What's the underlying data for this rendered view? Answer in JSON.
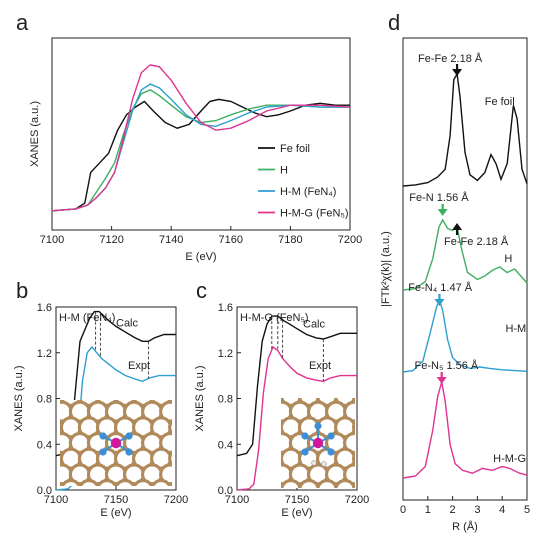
{
  "colors": {
    "fe_foil": "#111111",
    "h": "#3fae63",
    "h_m": "#2c9fd0",
    "h_m_g": "#e0338f",
    "arrow_black": "#111111",
    "atom_fe": "#d4189b",
    "atom_n": "#3a8fd6",
    "atom_c": "#b08a5a",
    "atom_h": "#ffffff"
  },
  "chart_data": [
    {
      "panel": "a",
      "type": "line",
      "xlabel": "E (eV)",
      "ylabel": "XANES (a.u.)",
      "xlim": [
        7100,
        7200
      ],
      "xticks": [
        "7100",
        "7120",
        "7140",
        "7160",
        "7180",
        "7200"
      ],
      "legend_position": "right",
      "series": [
        {
          "name": "Fe foil",
          "color": "#111111",
          "points": [
            [
              7100,
              0.1
            ],
            [
              7108,
              0.11
            ],
            [
              7111,
              0.14
            ],
            [
              7113,
              0.3
            ],
            [
              7116,
              0.35
            ],
            [
              7119,
              0.4
            ],
            [
              7122,
              0.52
            ],
            [
              7125,
              0.6
            ],
            [
              7128,
              0.64
            ],
            [
              7131,
              0.67
            ],
            [
              7134,
              0.62
            ],
            [
              7138,
              0.56
            ],
            [
              7142,
              0.53
            ],
            [
              7146,
              0.55
            ],
            [
              7150,
              0.62
            ],
            [
              7153,
              0.67
            ],
            [
              7156,
              0.68
            ],
            [
              7160,
              0.67
            ],
            [
              7164,
              0.64
            ],
            [
              7168,
              0.61
            ],
            [
              7172,
              0.59
            ],
            [
              7176,
              0.6
            ],
            [
              7180,
              0.62
            ],
            [
              7185,
              0.65
            ],
            [
              7190,
              0.66
            ],
            [
              7195,
              0.65
            ],
            [
              7200,
              0.65
            ]
          ]
        },
        {
          "name": "H",
          "color": "#3fae63",
          "points": [
            [
              7100,
              0.1
            ],
            [
              7108,
              0.11
            ],
            [
              7112,
              0.13
            ],
            [
              7115,
              0.2
            ],
            [
              7118,
              0.27
            ],
            [
              7121,
              0.35
            ],
            [
              7124,
              0.5
            ],
            [
              7127,
              0.63
            ],
            [
              7130,
              0.71
            ],
            [
              7133,
              0.73
            ],
            [
              7136,
              0.7
            ],
            [
              7140,
              0.65
            ],
            [
              7145,
              0.59
            ],
            [
              7150,
              0.56
            ],
            [
              7155,
              0.57
            ],
            [
              7160,
              0.6
            ],
            [
              7166,
              0.63
            ],
            [
              7172,
              0.65
            ],
            [
              7180,
              0.65
            ],
            [
              7190,
              0.64
            ],
            [
              7200,
              0.64
            ]
          ]
        },
        {
          "name": "H-M (FeN₄)",
          "color": "#2c9fd0",
          "points": [
            [
              7100,
              0.1
            ],
            [
              7108,
              0.11
            ],
            [
              7112,
              0.13
            ],
            [
              7115,
              0.17
            ],
            [
              7118,
              0.22
            ],
            [
              7121,
              0.3
            ],
            [
              7124,
              0.46
            ],
            [
              7127,
              0.62
            ],
            [
              7130,
              0.73
            ],
            [
              7133,
              0.76
            ],
            [
              7136,
              0.74
            ],
            [
              7140,
              0.68
            ],
            [
              7145,
              0.6
            ],
            [
              7150,
              0.55
            ],
            [
              7155,
              0.54
            ],
            [
              7160,
              0.57
            ],
            [
              7166,
              0.61
            ],
            [
              7172,
              0.64
            ],
            [
              7180,
              0.65
            ],
            [
              7190,
              0.64
            ],
            [
              7200,
              0.64
            ]
          ]
        },
        {
          "name": "H-M-G (FeN₅)",
          "color": "#e0338f",
          "points": [
            [
              7100,
              0.1
            ],
            [
              7108,
              0.11
            ],
            [
              7112,
              0.13
            ],
            [
              7115,
              0.17
            ],
            [
              7118,
              0.22
            ],
            [
              7121,
              0.3
            ],
            [
              7124,
              0.48
            ],
            [
              7127,
              0.68
            ],
            [
              7130,
              0.82
            ],
            [
              7133,
              0.86
            ],
            [
              7136,
              0.85
            ],
            [
              7140,
              0.78
            ],
            [
              7145,
              0.66
            ],
            [
              7150,
              0.56
            ],
            [
              7155,
              0.52
            ],
            [
              7160,
              0.53
            ],
            [
              7166,
              0.57
            ],
            [
              7172,
              0.62
            ],
            [
              7180,
              0.65
            ],
            [
              7190,
              0.65
            ],
            [
              7200,
              0.64
            ]
          ]
        }
      ]
    },
    {
      "panel": "b",
      "type": "line",
      "title": "H-M (FeN₄)",
      "xlabel": "E (eV)",
      "ylabel": "XANES (a.u.)",
      "xlim": [
        7100,
        7200
      ],
      "ylim": [
        0.0,
        1.6
      ],
      "xticks": [
        "7100",
        "7150",
        "7200"
      ],
      "yticks": [
        "0.0",
        "0.4",
        "0.8",
        "1.2",
        "1.6"
      ],
      "annotations": [
        "Calc",
        "Expt"
      ],
      "series": [
        {
          "name": "Calc",
          "color": "#111111",
          "points": [
            [
              7100,
              0.3
            ],
            [
              7108,
              0.32
            ],
            [
              7112,
              0.4
            ],
            [
              7116,
              0.85
            ],
            [
              7120,
              1.3
            ],
            [
              7124,
              1.4
            ],
            [
              7128,
              1.5
            ],
            [
              7132,
              1.56
            ],
            [
              7136,
              1.56
            ],
            [
              7140,
              1.52
            ],
            [
              7144,
              1.48
            ],
            [
              7150,
              1.43
            ],
            [
              7158,
              1.38
            ],
            [
              7166,
              1.33
            ],
            [
              7172,
              1.3
            ],
            [
              7177,
              1.3
            ],
            [
              7182,
              1.33
            ],
            [
              7190,
              1.36
            ],
            [
              7200,
              1.36
            ]
          ]
        },
        {
          "name": "Expt",
          "color": "#2c9fd0",
          "points": [
            [
              7100,
              0.0
            ],
            [
              7110,
              0.01
            ],
            [
              7114,
              0.05
            ],
            [
              7118,
              0.4
            ],
            [
              7122,
              0.95
            ],
            [
              7126,
              1.2
            ],
            [
              7130,
              1.25
            ],
            [
              7134,
              1.2
            ],
            [
              7138,
              1.15
            ],
            [
              7144,
              1.1
            ],
            [
              7150,
              1.05
            ],
            [
              7158,
              1.0
            ],
            [
              7166,
              0.97
            ],
            [
              7172,
              0.95
            ],
            [
              7178,
              0.98
            ],
            [
              7186,
              1.0
            ],
            [
              7200,
              1.0
            ]
          ]
        }
      ]
    },
    {
      "panel": "c",
      "type": "line",
      "title": "H-M-G (FeN₅)",
      "xlabel": "E (eV)",
      "ylabel": "XANES (a.u.)",
      "xlim": [
        7100,
        7200
      ],
      "ylim": [
        0.0,
        1.6
      ],
      "xticks": [
        "7100",
        "7150",
        "7200"
      ],
      "yticks": [
        "0.0",
        "0.4",
        "0.8",
        "1.2",
        "1.6"
      ],
      "annotations": [
        "Calc",
        "Expt"
      ],
      "series": [
        {
          "name": "Calc",
          "color": "#111111",
          "points": [
            [
              7100,
              0.3
            ],
            [
              7108,
              0.32
            ],
            [
              7113,
              0.4
            ],
            [
              7117,
              0.9
            ],
            [
              7121,
              1.3
            ],
            [
              7125,
              1.45
            ],
            [
              7129,
              1.52
            ],
            [
              7134,
              1.52
            ],
            [
              7139,
              1.48
            ],
            [
              7144,
              1.45
            ],
            [
              7150,
              1.41
            ],
            [
              7158,
              1.36
            ],
            [
              7166,
              1.33
            ],
            [
              7172,
              1.32
            ],
            [
              7178,
              1.34
            ],
            [
              7186,
              1.37
            ],
            [
              7200,
              1.37
            ]
          ]
        },
        {
          "name": "Expt",
          "color": "#e0338f",
          "points": [
            [
              7100,
              0.0
            ],
            [
              7110,
              0.01
            ],
            [
              7114,
              0.05
            ],
            [
              7118,
              0.35
            ],
            [
              7122,
              0.85
            ],
            [
              7126,
              1.15
            ],
            [
              7130,
              1.25
            ],
            [
              7134,
              1.22
            ],
            [
              7138,
              1.15
            ],
            [
              7144,
              1.08
            ],
            [
              7150,
              1.02
            ],
            [
              7158,
              0.98
            ],
            [
              7166,
              0.96
            ],
            [
              7172,
              0.95
            ],
            [
              7178,
              0.98
            ],
            [
              7186,
              1.0
            ],
            [
              7200,
              1.0
            ]
          ]
        }
      ]
    },
    {
      "panel": "d",
      "type": "line",
      "xlabel": "R (Å)",
      "ylabel": "|FTk²χ(k)| (a.u.)",
      "xlim": [
        0,
        5
      ],
      "xticks": [
        "0",
        "1",
        "2",
        "3",
        "4",
        "5"
      ],
      "annotations": [
        "Fe-Fe 2.18 Å",
        "Fe-N 1.56 Å",
        "Fe-Fe 2.18 Å",
        "Fe-N₄ 1.47 Å",
        "Fe-N₅ 1.56 Å"
      ],
      "series": [
        {
          "name": "Fe foil",
          "color": "#111111",
          "points": [
            [
              0,
              0.0
            ],
            [
              0.5,
              0.01
            ],
            [
              1.0,
              0.03
            ],
            [
              1.4,
              0.08
            ],
            [
              1.7,
              0.15
            ],
            [
              1.9,
              0.45
            ],
            [
              2.05,
              0.95
            ],
            [
              2.18,
              1.0
            ],
            [
              2.3,
              0.8
            ],
            [
              2.5,
              0.3
            ],
            [
              2.7,
              0.1
            ],
            [
              3.0,
              0.05
            ],
            [
              3.3,
              0.12
            ],
            [
              3.55,
              0.28
            ],
            [
              3.75,
              0.2
            ],
            [
              3.95,
              0.06
            ],
            [
              4.2,
              0.2
            ],
            [
              4.45,
              0.72
            ],
            [
              4.6,
              0.6
            ],
            [
              4.8,
              0.15
            ],
            [
              5.0,
              0.02
            ]
          ]
        },
        {
          "name": "H",
          "color": "#3fae63",
          "points": [
            [
              0,
              0.0
            ],
            [
              0.5,
              0.02
            ],
            [
              0.9,
              0.12
            ],
            [
              1.2,
              0.45
            ],
            [
              1.45,
              0.9
            ],
            [
              1.6,
              1.0
            ],
            [
              1.8,
              0.88
            ],
            [
              2.0,
              0.85
            ],
            [
              2.18,
              0.9
            ],
            [
              2.35,
              0.6
            ],
            [
              2.6,
              0.25
            ],
            [
              3.0,
              0.15
            ],
            [
              3.3,
              0.2
            ],
            [
              3.6,
              0.28
            ],
            [
              3.9,
              0.33
            ],
            [
              4.2,
              0.25
            ],
            [
              4.5,
              0.3
            ],
            [
              4.8,
              0.18
            ],
            [
              5.0,
              0.1
            ]
          ]
        },
        {
          "name": "H-M",
          "color": "#2c9fd0",
          "points": [
            [
              0,
              0.0
            ],
            [
              0.4,
              0.02
            ],
            [
              0.8,
              0.15
            ],
            [
              1.1,
              0.55
            ],
            [
              1.35,
              0.9
            ],
            [
              1.47,
              1.0
            ],
            [
              1.6,
              0.85
            ],
            [
              1.8,
              0.45
            ],
            [
              2.0,
              0.2
            ],
            [
              2.3,
              0.1
            ],
            [
              2.7,
              0.05
            ],
            [
              3.1,
              0.07
            ],
            [
              3.5,
              0.05
            ],
            [
              4.0,
              0.03
            ],
            [
              4.5,
              0.02
            ],
            [
              5.0,
              0.01
            ]
          ]
        },
        {
          "name": "H-M-G",
          "color": "#e0338f",
          "points": [
            [
              0,
              0.0
            ],
            [
              0.5,
              0.02
            ],
            [
              0.9,
              0.12
            ],
            [
              1.2,
              0.5
            ],
            [
              1.4,
              0.85
            ],
            [
              1.56,
              1.0
            ],
            [
              1.7,
              0.8
            ],
            [
              1.9,
              0.35
            ],
            [
              2.1,
              0.15
            ],
            [
              2.4,
              0.08
            ],
            [
              2.8,
              0.05
            ],
            [
              3.2,
              0.1
            ],
            [
              3.6,
              0.08
            ],
            [
              4.0,
              0.12
            ],
            [
              4.3,
              0.1
            ],
            [
              4.7,
              0.05
            ],
            [
              5.0,
              0.03
            ]
          ]
        }
      ]
    }
  ],
  "panels": {
    "a": {
      "letter": "a"
    },
    "b": {
      "letter": "b"
    },
    "c": {
      "letter": "c"
    },
    "d": {
      "letter": "d"
    }
  }
}
